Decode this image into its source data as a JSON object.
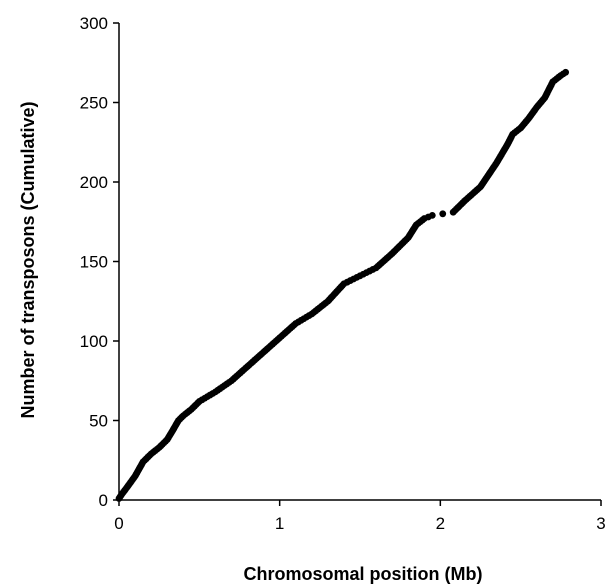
{
  "chart_data": {
    "type": "scatter",
    "title": "",
    "xlabel": "Chromosomal position (Mb)",
    "ylabel": "Number of transposons (Cumulative)",
    "xlim": [
      0,
      3
    ],
    "ylim": [
      0,
      300
    ],
    "xticks": [
      0,
      1,
      2,
      3
    ],
    "yticks": [
      0,
      50,
      100,
      150,
      200,
      250,
      300
    ],
    "grid": false,
    "legend": "none",
    "marker_color": "#000000",
    "anchors": [
      [
        0.0,
        1
      ],
      [
        0.02,
        4
      ],
      [
        0.05,
        8
      ],
      [
        0.1,
        15
      ],
      [
        0.15,
        24
      ],
      [
        0.2,
        29
      ],
      [
        0.25,
        33
      ],
      [
        0.3,
        38
      ],
      [
        0.33,
        43
      ],
      [
        0.37,
        50
      ],
      [
        0.4,
        53
      ],
      [
        0.45,
        57
      ],
      [
        0.5,
        62
      ],
      [
        0.6,
        68
      ],
      [
        0.7,
        75
      ],
      [
        0.8,
        84
      ],
      [
        0.9,
        93
      ],
      [
        1.0,
        102
      ],
      [
        1.1,
        111
      ],
      [
        1.2,
        117
      ],
      [
        1.3,
        125
      ],
      [
        1.4,
        136
      ],
      [
        1.5,
        141
      ],
      [
        1.6,
        146
      ],
      [
        1.7,
        155
      ],
      [
        1.8,
        165
      ],
      [
        1.85,
        173
      ],
      [
        1.9,
        177
      ],
      [
        1.95,
        179
      ],
      [
        2.08,
        181
      ],
      [
        2.15,
        188
      ],
      [
        2.25,
        197
      ],
      [
        2.35,
        212
      ],
      [
        2.42,
        224
      ],
      [
        2.45,
        230
      ],
      [
        2.5,
        234
      ],
      [
        2.55,
        240
      ],
      [
        2.6,
        247
      ],
      [
        2.65,
        253
      ],
      [
        2.7,
        263
      ],
      [
        2.75,
        267
      ],
      [
        2.78,
        269
      ]
    ],
    "point_count": 269
  }
}
